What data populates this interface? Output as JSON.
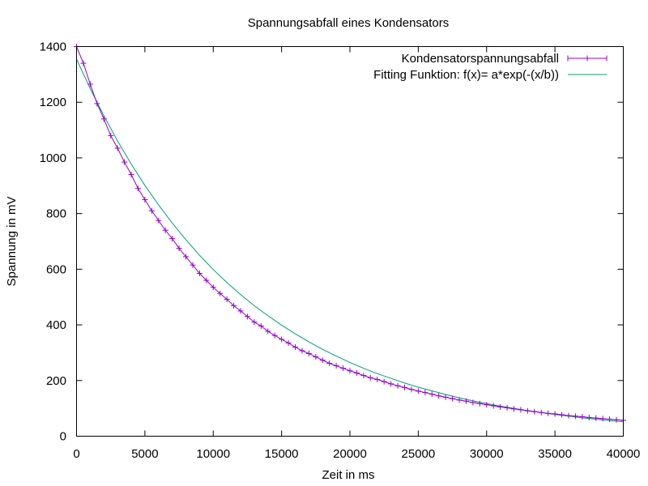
{
  "chart_data": {
    "type": "line",
    "title": "Spannungsabfall eines Kondensators",
    "xlabel": "Zeit in ms",
    "ylabel": "Spannung in mV",
    "xlim": [
      0,
      40000
    ],
    "ylim": [
      0,
      1400
    ],
    "xticks": [
      0,
      5000,
      10000,
      15000,
      20000,
      25000,
      30000,
      35000,
      40000
    ],
    "yticks": [
      0,
      200,
      400,
      600,
      800,
      1000,
      1200,
      1400
    ],
    "grid": false,
    "legend_position": "top-right",
    "series": [
      {
        "name": "Kondensatorspannungsabfall",
        "style": "lines+points",
        "color": "#9400d3",
        "x": [
          0,
          500,
          1000,
          1500,
          2000,
          2500,
          3000,
          3500,
          4000,
          4500,
          5000,
          5500,
          6000,
          6500,
          7000,
          7500,
          8000,
          8500,
          9000,
          9500,
          10000,
          10500,
          11000,
          11500,
          12000,
          12500,
          13000,
          13500,
          14000,
          14500,
          15000,
          15500,
          16000,
          16500,
          17000,
          17500,
          18000,
          18500,
          19000,
          19500,
          20000,
          20500,
          21000,
          21500,
          22000,
          22500,
          23000,
          23500,
          24000,
          24500,
          25000,
          25500,
          26000,
          26500,
          27000,
          27500,
          28000,
          28500,
          29000,
          29500,
          30000,
          30500,
          31000,
          31500,
          32000,
          32500,
          33000,
          33500,
          34000,
          34500,
          35000,
          35500,
          36000,
          36500,
          37000,
          37500,
          38000,
          38500,
          39000,
          39500,
          40000
        ],
        "y": [
          1400,
          1340,
          1265,
          1195,
          1140,
          1080,
          1035,
          985,
          940,
          890,
          850,
          810,
          775,
          740,
          710,
          675,
          645,
          615,
          585,
          560,
          535,
          513,
          492,
          469,
          450,
          430,
          410,
          396,
          377,
          362,
          348,
          335,
          320,
          307,
          297,
          285,
          273,
          262,
          253,
          244,
          235,
          227,
          218,
          210,
          204,
          196,
          188,
          181,
          175,
          168,
          162,
          157,
          151,
          145,
          140,
          135,
          130,
          126,
          121,
          117,
          113,
          109,
          105,
          102,
          98,
          95,
          91,
          88,
          85,
          82,
          80,
          77,
          74,
          72,
          70,
          67,
          65,
          63,
          61,
          59,
          57
        ]
      },
      {
        "name": "Fitting Funktion: f(x)= a*exp(-(x/b))",
        "style": "line",
        "color": "#009e73",
        "x": [
          0,
          1000,
          2000,
          3000,
          4000,
          5000,
          6000,
          7000,
          8000,
          9000,
          10000,
          11000,
          12000,
          13000,
          14000,
          15000,
          16000,
          17000,
          18000,
          19000,
          20000,
          21000,
          22000,
          23000,
          24000,
          25000,
          26000,
          27000,
          28000,
          29000,
          30000,
          31000,
          32000,
          33000,
          34000,
          35000,
          36000,
          37000,
          38000,
          39000,
          40000
        ],
        "y": [
          1355,
          1249,
          1151,
          1061,
          978,
          901,
          831,
          766,
          706,
          650,
          599,
          552,
          509,
          469,
          433,
          399,
          368,
          339,
          312,
          288,
          265,
          244,
          225,
          208,
          191,
          176,
          163,
          150,
          138,
          127,
          117,
          108,
          100,
          92,
          85,
          78,
          72,
          66,
          61,
          56,
          52
        ]
      }
    ]
  }
}
